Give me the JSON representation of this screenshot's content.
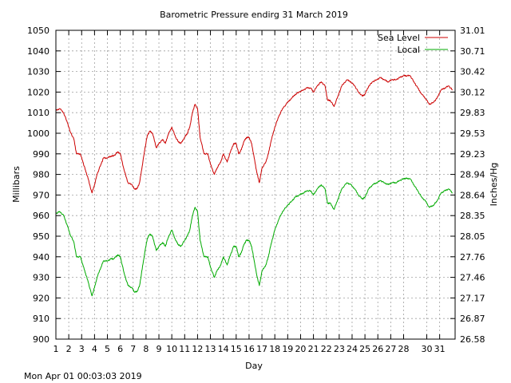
{
  "chart_data": {
    "type": "line",
    "title": "Barometric Pressure endirg 31 March 2019",
    "xlabel": "Day",
    "ylabel": "Millibars",
    "ylabel_right": "Inches/Hg",
    "xlim": [
      1,
      32
    ],
    "ylim": [
      900,
      1050
    ],
    "x_ticks": [
      "1",
      "2",
      "3",
      "4",
      "5",
      "6",
      "7",
      "8",
      "9",
      "10",
      "11",
      "12",
      "13",
      "14",
      "15",
      "16",
      "17",
      "18",
      "19",
      "20",
      "21",
      "22",
      "23",
      "24",
      "25",
      "26",
      "27",
      "28",
      "30",
      "31"
    ],
    "x_tick_positions": [
      1,
      2,
      3,
      4,
      5,
      6,
      7,
      8,
      9,
      10,
      11,
      12,
      13,
      14,
      15,
      16,
      17,
      18,
      19,
      20,
      21,
      22,
      23,
      24,
      25,
      26,
      27,
      28,
      29.8,
      30.8
    ],
    "y_ticks": [
      900,
      910,
      920,
      930,
      940,
      950,
      960,
      970,
      980,
      990,
      1000,
      1010,
      1020,
      1030,
      1040,
      1050
    ],
    "y2_ticks": [
      "26.58",
      "26.87",
      "27.17",
      "27.46",
      "27.76",
      "28.05",
      "28.35",
      "28.64",
      "28.94",
      "29.23",
      "29.53",
      "29.83",
      "30.12",
      "30.42",
      "30.71",
      "31.01"
    ],
    "grid": true,
    "legend_position": "top-right",
    "series": [
      {
        "name": "Sea Level",
        "color": "#cc0000",
        "x": [
          1.0,
          1.3,
          1.6,
          1.9,
          2.1,
          2.4,
          2.6,
          2.9,
          3.1,
          3.3,
          3.5,
          3.8,
          4.0,
          4.2,
          4.5,
          4.7,
          5.0,
          5.3,
          5.5,
          5.8,
          6.0,
          6.3,
          6.6,
          6.9,
          7.1,
          7.3,
          7.5,
          7.7,
          7.9,
          8.1,
          8.3,
          8.5,
          8.8,
          9.0,
          9.3,
          9.5,
          9.7,
          10.0,
          10.3,
          10.5,
          10.7,
          11.0,
          11.2,
          11.4,
          11.6,
          11.8,
          12.0,
          12.2,
          12.5,
          12.8,
          13.0,
          13.3,
          13.5,
          13.8,
          14.0,
          14.3,
          14.5,
          14.8,
          15.0,
          15.2,
          15.4,
          15.6,
          15.8,
          16.0,
          16.2,
          16.4,
          16.6,
          16.8,
          17.0,
          17.3,
          17.5,
          17.7,
          18.0,
          18.3,
          18.6,
          19.0,
          19.3,
          19.6,
          19.9,
          20.2,
          20.5,
          20.8,
          21.0,
          21.3,
          21.6,
          21.9,
          22.1,
          22.3,
          22.6,
          22.9,
          23.2,
          23.6,
          23.9,
          24.2,
          24.5,
          24.8,
          25.0,
          25.3,
          25.6,
          25.9,
          26.2,
          26.5,
          26.8,
          27.1,
          27.4,
          27.7,
          28.0,
          28.2,
          28.5,
          28.8,
          29.1,
          29.4,
          29.7,
          30.0,
          30.3,
          30.6,
          30.9,
          31.2,
          31.5,
          31.8
        ],
        "y": [
          1011,
          1012,
          1010,
          1005,
          1001,
          997,
          990,
          990,
          986,
          982,
          978,
          971,
          975,
          980,
          985,
          988,
          988,
          989,
          989,
          991,
          990,
          982,
          976,
          975,
          973,
          973,
          976,
          984,
          992,
          999,
          1001,
          1000,
          993,
          995,
          997,
          995,
          999,
          1003,
          998,
          996,
          995,
          998,
          1000,
          1003,
          1010,
          1014,
          1012,
          998,
          990,
          990,
          985,
          980,
          983,
          986,
          990,
          986,
          990,
          995,
          995,
          990,
          992,
          996,
          998,
          998,
          995,
          988,
          981,
          976,
          983,
          986,
          990,
          996,
          1003,
          1008,
          1012,
          1015,
          1017,
          1019,
          1020,
          1021,
          1022,
          1022,
          1020,
          1023,
          1025,
          1023,
          1016,
          1016,
          1013,
          1018,
          1023,
          1026,
          1025,
          1023,
          1020,
          1018,
          1019,
          1023,
          1025,
          1026,
          1027,
          1026,
          1025,
          1026,
          1026,
          1027,
          1028,
          1028,
          1028,
          1025,
          1022,
          1019,
          1017,
          1014,
          1015,
          1017,
          1021,
          1022,
          1023,
          1021
        ]
      },
      {
        "name": "Local",
        "color": "#00aa00",
        "x": [
          1.0,
          1.3,
          1.6,
          1.9,
          2.1,
          2.4,
          2.6,
          2.9,
          3.1,
          3.3,
          3.5,
          3.8,
          4.0,
          4.2,
          4.5,
          4.7,
          5.0,
          5.3,
          5.5,
          5.8,
          6.0,
          6.3,
          6.6,
          6.9,
          7.1,
          7.3,
          7.5,
          7.7,
          7.9,
          8.1,
          8.3,
          8.5,
          8.8,
          9.0,
          9.3,
          9.5,
          9.7,
          10.0,
          10.3,
          10.5,
          10.7,
          11.0,
          11.2,
          11.4,
          11.6,
          11.8,
          12.0,
          12.2,
          12.5,
          12.8,
          13.0,
          13.3,
          13.5,
          13.8,
          14.0,
          14.3,
          14.5,
          14.8,
          15.0,
          15.2,
          15.4,
          15.6,
          15.8,
          16.0,
          16.2,
          16.4,
          16.6,
          16.8,
          17.0,
          17.3,
          17.5,
          17.7,
          18.0,
          18.3,
          18.6,
          19.0,
          19.3,
          19.6,
          19.9,
          20.2,
          20.5,
          20.8,
          21.0,
          21.3,
          21.6,
          21.9,
          22.1,
          22.3,
          22.6,
          22.9,
          23.2,
          23.6,
          23.9,
          24.2,
          24.5,
          24.8,
          25.0,
          25.3,
          25.6,
          25.9,
          26.2,
          26.5,
          26.8,
          27.1,
          27.4,
          27.7,
          28.0,
          28.2,
          28.5,
          28.8,
          29.1,
          29.4,
          29.7,
          30.0,
          30.3,
          30.6,
          30.9,
          31.2,
          31.5,
          31.8
        ],
        "y": [
          961,
          962,
          960,
          955,
          951,
          947,
          940,
          940,
          936,
          932,
          928,
          921,
          925,
          930,
          935,
          938,
          938,
          939,
          939,
          941,
          940,
          932,
          926,
          925,
          923,
          923,
          926,
          934,
          942,
          949,
          951,
          950,
          943,
          945,
          947,
          945,
          949,
          953,
          948,
          946,
          945,
          948,
          950,
          953,
          960,
          964,
          962,
          948,
          940,
          940,
          935,
          930,
          933,
          936,
          940,
          936,
          940,
          945,
          945,
          940,
          942,
          946,
          948,
          948,
          945,
          938,
          931,
          926,
          933,
          936,
          940,
          946,
          953,
          958,
          962,
          965,
          967,
          969,
          970,
          971,
          972,
          972,
          970,
          973,
          975,
          973,
          966,
          966,
          963,
          968,
          973,
          976,
          975,
          973,
          970,
          968,
          969,
          973,
          975,
          976,
          977,
          976,
          975,
          976,
          976,
          977,
          978,
          978,
          978,
          975,
          972,
          969,
          967,
          964,
          965,
          967,
          971,
          972,
          973,
          971
        ]
      }
    ]
  },
  "footer": {
    "timestamp": "Mon Apr 01 00:03:03 2019"
  }
}
